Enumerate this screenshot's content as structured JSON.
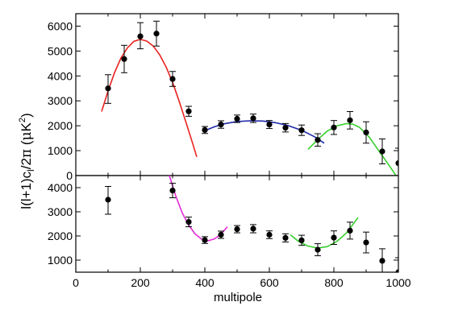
{
  "chart_data": {
    "type": "scatter",
    "xlabel": "multipole",
    "ylabel_parts": [
      "l(l+1)c",
      "l",
      "/2",
      "π",
      " (",
      "μ",
      "K",
      "2",
      ")"
    ],
    "xlim": [
      0,
      1000
    ],
    "x_ticks": [
      0,
      200,
      400,
      600,
      800,
      1000
    ],
    "panels": [
      {
        "ylim": [
          0,
          6500
        ],
        "y_ticks": [
          0,
          1000,
          2000,
          3000,
          4000,
          5000,
          6000
        ],
        "points": [
          {
            "x": 100,
            "y": 3500,
            "err_lo": 600,
            "err_hi": 550
          },
          {
            "x": 150,
            "y": 4680,
            "err_lo": 550,
            "err_hi": 550
          },
          {
            "x": 200,
            "y": 5590,
            "err_lo": 500,
            "err_hi": 550
          },
          {
            "x": 250,
            "y": 5700,
            "err_lo": 500,
            "err_hi": 500
          },
          {
            "x": 300,
            "y": 3880,
            "err_lo": 300,
            "err_hi": 300
          },
          {
            "x": 350,
            "y": 2580,
            "err_lo": 200,
            "err_hi": 200
          },
          {
            "x": 400,
            "y": 1830,
            "err_lo": 140,
            "err_hi": 140
          },
          {
            "x": 450,
            "y": 2050,
            "err_lo": 150,
            "err_hi": 150
          },
          {
            "x": 500,
            "y": 2280,
            "err_lo": 150,
            "err_hi": 150
          },
          {
            "x": 550,
            "y": 2300,
            "err_lo": 170,
            "err_hi": 170
          },
          {
            "x": 600,
            "y": 2050,
            "err_lo": 160,
            "err_hi": 160
          },
          {
            "x": 650,
            "y": 1920,
            "err_lo": 170,
            "err_hi": 170
          },
          {
            "x": 700,
            "y": 1820,
            "err_lo": 210,
            "err_hi": 210
          },
          {
            "x": 750,
            "y": 1430,
            "err_lo": 250,
            "err_hi": 250
          },
          {
            "x": 800,
            "y": 1930,
            "err_lo": 280,
            "err_hi": 280
          },
          {
            "x": 850,
            "y": 2220,
            "err_lo": 350,
            "err_hi": 350
          },
          {
            "x": 900,
            "y": 1730,
            "err_lo": 430,
            "err_hi": 430
          },
          {
            "x": 950,
            "y": 970,
            "err_lo": 500,
            "err_hi": 500
          },
          {
            "x": 1000,
            "y": 500,
            "err_lo": 600,
            "err_hi": 600
          }
        ],
        "fits": [
          {
            "color": "#e8231f",
            "x_range": [
              80,
              375
            ],
            "points": [
              [
                80,
                2570
              ],
              [
                100,
                3400
              ],
              [
                120,
                4130
              ],
              [
                140,
                4720
              ],
              [
                160,
                5130
              ],
              [
                180,
                5390
              ],
              [
                200,
                5470
              ],
              [
                220,
                5400
              ],
              [
                240,
                5200
              ],
              [
                260,
                4850
              ],
              [
                280,
                4360
              ],
              [
                300,
                3740
              ],
              [
                320,
                3000
              ],
              [
                340,
                2200
              ],
              [
                360,
                1380
              ],
              [
                375,
                750
              ]
            ]
          },
          {
            "color": "#1f2aa8",
            "x_range": [
              400,
              770
            ],
            "points": [
              [
                400,
                1800
              ],
              [
                430,
                1960
              ],
              [
                460,
                2080
              ],
              [
                500,
                2170
              ],
              [
                540,
                2200
              ],
              [
                580,
                2190
              ],
              [
                620,
                2120
              ],
              [
                660,
                2000
              ],
              [
                700,
                1820
              ],
              [
                740,
                1560
              ],
              [
                770,
                1300
              ]
            ]
          },
          {
            "color": "#35d02b",
            "x_range": [
              720,
              1000
            ],
            "points": [
              [
                720,
                1050
              ],
              [
                750,
                1450
              ],
              [
                780,
                1790
              ],
              [
                810,
                2000
              ],
              [
                840,
                2090
              ],
              [
                860,
                2060
              ],
              [
                880,
                1930
              ],
              [
                910,
                1540
              ],
              [
                940,
                980
              ],
              [
                970,
                430
              ],
              [
                985,
                150
              ],
              [
                1000,
                -150
              ]
            ]
          }
        ]
      },
      {
        "ylim": [
          500,
          4500
        ],
        "y_ticks": [
          1000,
          2000,
          3000,
          4000
        ],
        "points": [
          {
            "x": 100,
            "y": 3500,
            "err_lo": 600,
            "err_hi": 550
          },
          {
            "x": 300,
            "y": 3880,
            "err_lo": 300,
            "err_hi": 300
          },
          {
            "x": 350,
            "y": 2580,
            "err_lo": 200,
            "err_hi": 200
          },
          {
            "x": 400,
            "y": 1830,
            "err_lo": 140,
            "err_hi": 140
          },
          {
            "x": 450,
            "y": 2050,
            "err_lo": 150,
            "err_hi": 150
          },
          {
            "x": 500,
            "y": 2280,
            "err_lo": 150,
            "err_hi": 150
          },
          {
            "x": 550,
            "y": 2300,
            "err_lo": 170,
            "err_hi": 170
          },
          {
            "x": 600,
            "y": 2050,
            "err_lo": 160,
            "err_hi": 160
          },
          {
            "x": 650,
            "y": 1920,
            "err_lo": 170,
            "err_hi": 170
          },
          {
            "x": 700,
            "y": 1820,
            "err_lo": 210,
            "err_hi": 210
          },
          {
            "x": 750,
            "y": 1430,
            "err_lo": 250,
            "err_hi": 250
          },
          {
            "x": 800,
            "y": 1930,
            "err_lo": 280,
            "err_hi": 280
          },
          {
            "x": 850,
            "y": 2220,
            "err_lo": 350,
            "err_hi": 350
          },
          {
            "x": 900,
            "y": 1730,
            "err_lo": 430,
            "err_hi": 430
          },
          {
            "x": 950,
            "y": 970,
            "err_lo": 500,
            "err_hi": 500
          },
          {
            "x": 1000,
            "y": 500,
            "err_lo": 600,
            "err_hi": 600
          }
        ],
        "fits": [
          {
            "color": "#e12ad6",
            "x_range": [
              290,
              470
            ],
            "points": [
              [
                290,
                4500
              ],
              [
                310,
                3650
              ],
              [
                330,
                2950
              ],
              [
                350,
                2450
              ],
              [
                370,
                2080
              ],
              [
                390,
                1870
              ],
              [
                410,
                1800
              ],
              [
                430,
                1880
              ],
              [
                450,
                2080
              ],
              [
                470,
                2380
              ]
            ]
          },
          {
            "color": "#35d02b",
            "x_range": [
              665,
              875
            ],
            "points": [
              [
                665,
                2050
              ],
              [
                690,
                1780
              ],
              [
                720,
                1580
              ],
              [
                750,
                1500
              ],
              [
                780,
                1560
              ],
              [
                810,
                1780
              ],
              [
                840,
                2140
              ],
              [
                875,
                2760
              ]
            ]
          }
        ]
      }
    ]
  }
}
